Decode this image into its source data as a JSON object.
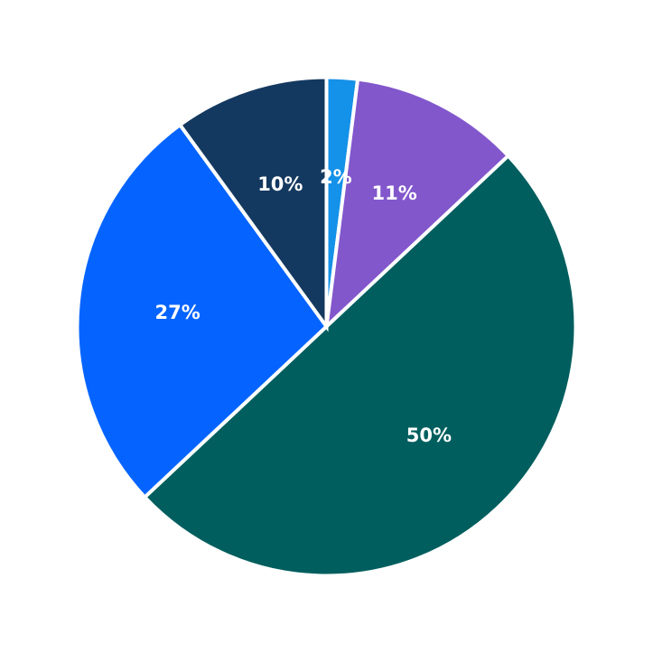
{
  "chart_data": {
    "type": "pie",
    "start_angle": "top",
    "direction": "clockwise",
    "slices": [
      {
        "label": "2%",
        "value": 2,
        "color": "#1491e8"
      },
      {
        "label": "11%",
        "value": 11,
        "color": "#8257cc"
      },
      {
        "label": "50%",
        "value": 50,
        "color": "#005e5e"
      },
      {
        "label": "27%",
        "value": 27,
        "color": "#0564ff"
      },
      {
        "label": "10%",
        "value": 10,
        "color": "#143960"
      }
    ]
  }
}
